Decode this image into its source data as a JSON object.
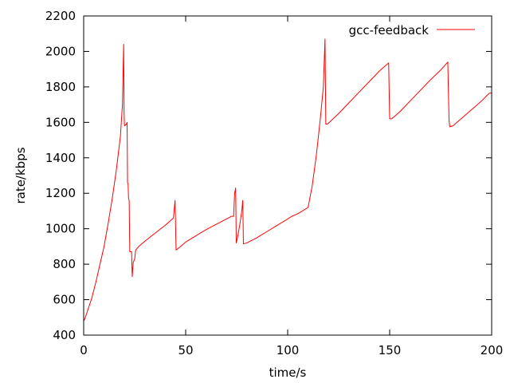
{
  "chart_data": {
    "type": "line",
    "title": "",
    "xlabel": "time/s",
    "ylabel": "rate/kbps",
    "xlim": [
      0,
      200
    ],
    "ylim": [
      400,
      2200
    ],
    "xticks": [
      0,
      50,
      100,
      150,
      200
    ],
    "yticks": [
      400,
      600,
      800,
      1000,
      1200,
      1400,
      1600,
      1800,
      2000,
      2200
    ],
    "grid": false,
    "legend_position": "top-right",
    "series": [
      {
        "name": "gcc-feedback",
        "color": "#ff0000",
        "points": [
          [
            0,
            480
          ],
          [
            0.5,
            490
          ],
          [
            2,
            540
          ],
          [
            4,
            610
          ],
          [
            6,
            700
          ],
          [
            8,
            800
          ],
          [
            10,
            900
          ],
          [
            12,
            1030
          ],
          [
            14,
            1170
          ],
          [
            16,
            1330
          ],
          [
            18,
            1520
          ],
          [
            19,
            1700
          ],
          [
            19.6,
            2040
          ],
          [
            19.8,
            1660
          ],
          [
            20,
            1580
          ],
          [
            21,
            1590
          ],
          [
            21.3,
            1600
          ],
          [
            21.5,
            1260
          ],
          [
            21.8,
            1250
          ],
          [
            22,
            1170
          ],
          [
            22.3,
            1160
          ],
          [
            22.6,
            870
          ],
          [
            23,
            870
          ],
          [
            23.5,
            870
          ],
          [
            23.8,
            730
          ],
          [
            24.3,
            810
          ],
          [
            25,
            830
          ],
          [
            25.5,
            880
          ],
          [
            27,
            900
          ],
          [
            30,
            930
          ],
          [
            35,
            975
          ],
          [
            40,
            1020
          ],
          [
            44,
            1060
          ],
          [
            44.8,
            1160
          ],
          [
            45.3,
            880
          ],
          [
            47,
            895
          ],
          [
            50,
            925
          ],
          [
            55,
            960
          ],
          [
            60,
            995
          ],
          [
            65,
            1025
          ],
          [
            70,
            1055
          ],
          [
            72.5,
            1070
          ],
          [
            73.5,
            1070
          ],
          [
            74,
            1200
          ],
          [
            74.5,
            1230
          ],
          [
            74.8,
            920
          ],
          [
            75.5,
            955
          ],
          [
            76.5,
            1020
          ],
          [
            77.5,
            1100
          ],
          [
            78,
            1160
          ],
          [
            78.3,
            915
          ],
          [
            80,
            920
          ],
          [
            85,
            950
          ],
          [
            90,
            985
          ],
          [
            95,
            1020
          ],
          [
            100,
            1055
          ],
          [
            102,
            1070
          ],
          [
            105,
            1085
          ],
          [
            110,
            1120
          ],
          [
            112,
            1240
          ],
          [
            114,
            1410
          ],
          [
            116,
            1620
          ],
          [
            117.5,
            1800
          ],
          [
            118.3,
            2070
          ],
          [
            118.7,
            1590
          ],
          [
            119.5,
            1590
          ],
          [
            125,
            1650
          ],
          [
            130,
            1710
          ],
          [
            135,
            1770
          ],
          [
            140,
            1830
          ],
          [
            145,
            1890
          ],
          [
            149.5,
            1935
          ],
          [
            150,
            1620
          ],
          [
            151,
            1620
          ],
          [
            155,
            1660
          ],
          [
            160,
            1720
          ],
          [
            165,
            1780
          ],
          [
            170,
            1840
          ],
          [
            175,
            1895
          ],
          [
            178.5,
            1940
          ],
          [
            179.1,
            1610
          ],
          [
            179.5,
            1575
          ],
          [
            181,
            1580
          ],
          [
            185,
            1620
          ],
          [
            190,
            1670
          ],
          [
            195,
            1720
          ],
          [
            198,
            1755
          ],
          [
            199,
            1765
          ],
          [
            200,
            1765
          ]
        ]
      }
    ]
  }
}
